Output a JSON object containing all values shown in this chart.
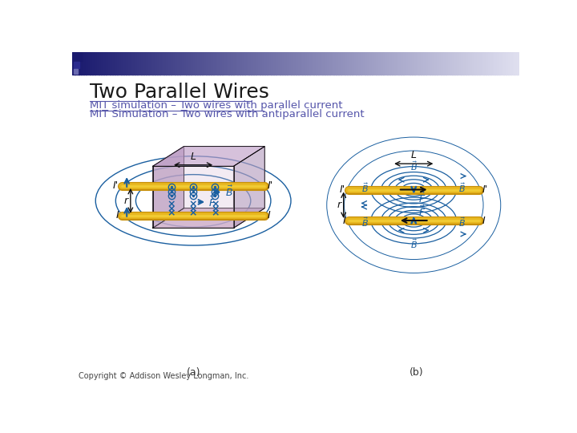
{
  "title": "Two Parallel Wires",
  "link1": "MIT simulation – Two wires with parallel current",
  "link2": "MIT Simulation – Two wires with antiparallel current",
  "label_a": "(a)",
  "label_b": "(b)",
  "copyright": "Copyright © Addison Wesley Longman, Inc.",
  "title_color": "#1a1a1a",
  "link_color": "#5555aa",
  "background_color": "#ffffff",
  "wire_outer": "#c8900a",
  "wire_inner": "#e8b820",
  "wire_highlight": "#f8d840",
  "field_color": "#1a5fa0",
  "box_front": "#d8c0d8",
  "box_side": "#b090b8",
  "box_top": "#c0a0c8",
  "box_floor": "#c8a0c0",
  "box_right": "#b8a0c0"
}
